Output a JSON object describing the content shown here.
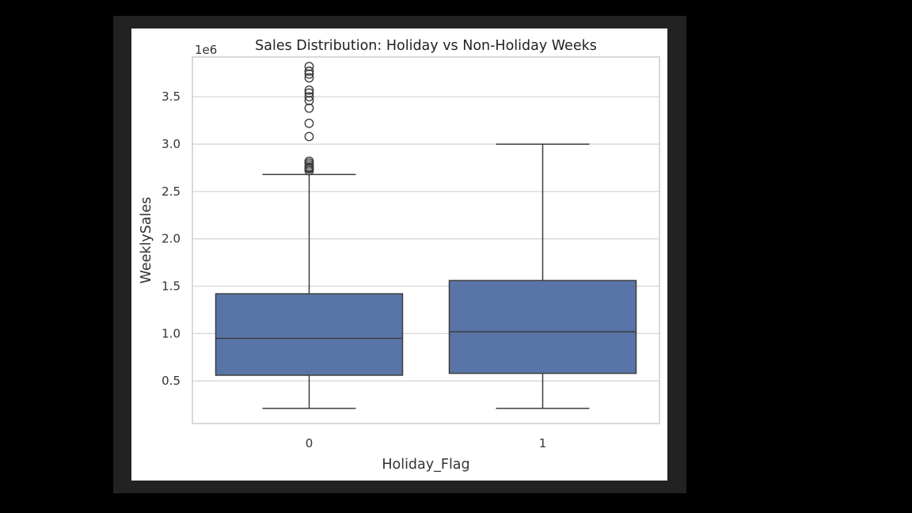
{
  "chart_data": {
    "type": "box",
    "title": "Sales Distribution: Holiday vs Non-Holiday Weeks",
    "xlabel": "Holiday_Flag",
    "ylabel": "WeeklySales",
    "offset_label": "1e6",
    "categories": [
      "0",
      "1"
    ],
    "ylim": [
      0.05,
      3.92
    ],
    "yticks": [
      "0.5",
      "1.0",
      "1.5",
      "2.0",
      "2.5",
      "3.0",
      "3.5"
    ],
    "grid": true,
    "box_color": "#5975a8",
    "boxes": [
      {
        "category": "0",
        "whisker_low": 0.21,
        "q1": 0.56,
        "median": 0.95,
        "q3": 1.42,
        "whisker_high": 2.68,
        "outliers": [
          2.72,
          2.74,
          2.75,
          2.76,
          2.78,
          2.8,
          2.82,
          3.08,
          3.22,
          3.38,
          3.46,
          3.5,
          3.54,
          3.57,
          3.7,
          3.74,
          3.77,
          3.82
        ]
      },
      {
        "category": "1",
        "whisker_low": 0.21,
        "q1": 0.58,
        "median": 1.02,
        "q3": 1.56,
        "whisker_high": 3.0,
        "outliers": []
      }
    ]
  }
}
